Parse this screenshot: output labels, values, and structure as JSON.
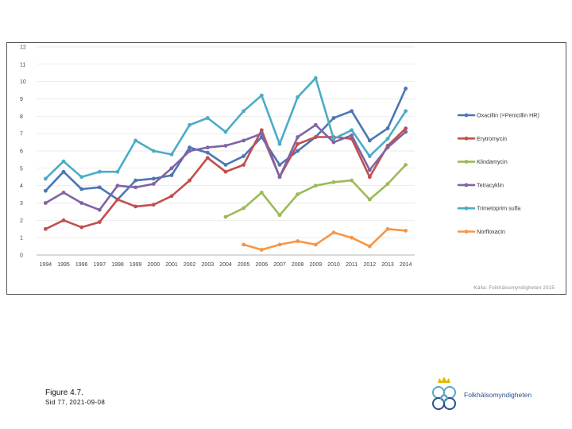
{
  "chart_data": {
    "type": "line",
    "title": "",
    "xlabel": "",
    "ylabel": "",
    "ylim": [
      0,
      12
    ],
    "yticks": [
      0,
      1,
      2,
      3,
      4,
      5,
      6,
      7,
      8,
      9,
      10,
      11,
      12
    ],
    "grid": true,
    "legend_position": "right",
    "categories": [
      "1994",
      "1995",
      "1996",
      "1997",
      "1998",
      "1999",
      "2000",
      "2001",
      "2002",
      "2003",
      "2004",
      "2005",
      "2006",
      "2007",
      "2008",
      "2009",
      "2010",
      "2011",
      "2012",
      "2013",
      "2014"
    ],
    "series": [
      {
        "name": "Oxacillin (=Penicillin HR)",
        "color": "#4a76b5",
        "values": [
          3.7,
          4.8,
          3.8,
          3.9,
          3.2,
          4.3,
          4.4,
          4.6,
          6.2,
          5.9,
          5.2,
          5.7,
          6.8,
          5.2,
          6.0,
          6.8,
          7.9,
          8.3,
          6.6,
          7.3,
          9.6
        ]
      },
      {
        "name": "Erytromycin",
        "color": "#c0504d",
        "values": [
          1.5,
          2.0,
          1.6,
          1.9,
          3.2,
          2.8,
          2.9,
          3.4,
          4.3,
          5.6,
          4.8,
          5.2,
          7.2,
          4.5,
          6.4,
          6.8,
          6.8,
          6.7,
          4.5,
          6.3,
          7.3
        ]
      },
      {
        "name": "Klindamycin",
        "color": "#9bbb59",
        "values": [
          null,
          null,
          null,
          null,
          null,
          null,
          null,
          null,
          null,
          null,
          2.2,
          2.7,
          3.6,
          2.3,
          3.5,
          4.0,
          4.2,
          4.3,
          3.2,
          4.1,
          5.2
        ]
      },
      {
        "name": "Tetracyklin",
        "color": "#8064a2",
        "values": [
          3.0,
          3.6,
          3.0,
          2.6,
          4.0,
          3.9,
          4.1,
          5.0,
          6.0,
          6.2,
          6.3,
          6.6,
          7.0,
          4.5,
          6.8,
          7.5,
          6.5,
          6.9,
          4.9,
          6.2,
          7.1
        ]
      },
      {
        "name": "Trimetoprim sulfa",
        "color": "#4bacc6",
        "values": [
          4.4,
          5.4,
          4.5,
          4.8,
          4.8,
          6.6,
          6.0,
          5.8,
          7.5,
          7.9,
          7.1,
          8.3,
          9.2,
          6.4,
          9.1,
          10.2,
          6.7,
          7.2,
          5.7,
          6.7,
          8.3
        ]
      },
      {
        "name": "Norfloxacin",
        "color": "#f79646",
        "values": [
          null,
          null,
          null,
          null,
          null,
          null,
          null,
          null,
          null,
          null,
          null,
          0.6,
          0.3,
          0.6,
          0.8,
          0.6,
          1.3,
          1.0,
          0.5,
          1.5,
          1.4
        ]
      }
    ]
  },
  "source_note": "Källa: Folkhälsomyndigheten 2015",
  "caption": {
    "figure": "Figure 4.7.",
    "subtitle": "Sid 77, 2021-09-08"
  },
  "brand": {
    "name": "Folkhälsomyndigheten",
    "primary_color": "#2a4f8a",
    "accent_color": "#5aa6c8",
    "crown_color": "#e6b800"
  }
}
